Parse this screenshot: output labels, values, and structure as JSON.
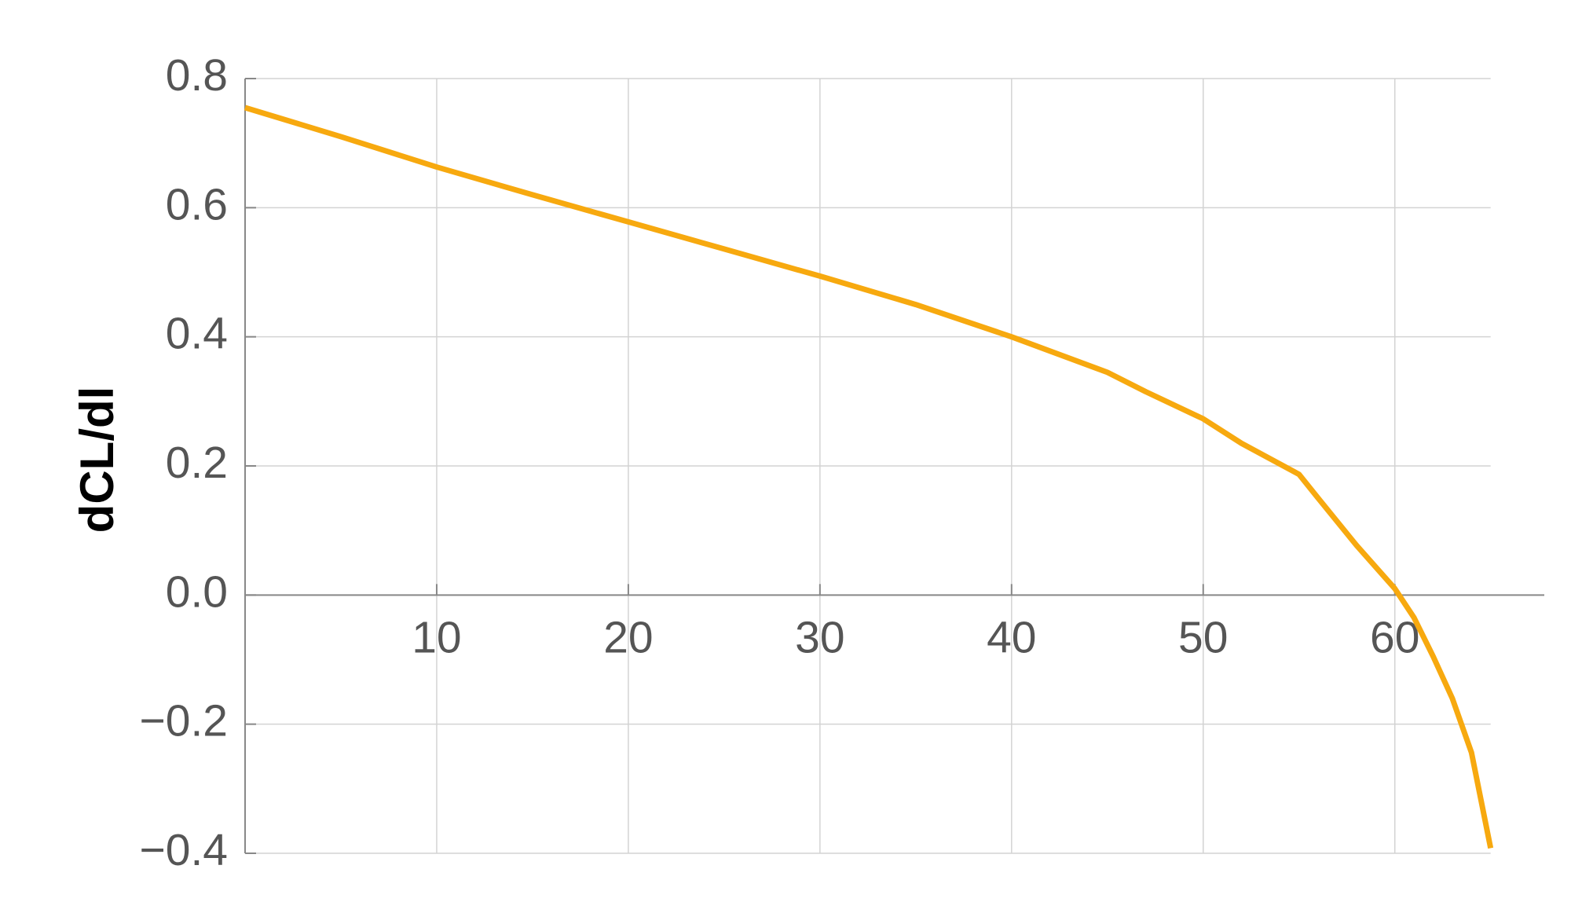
{
  "chart_data": {
    "type": "line",
    "y_label": "dCL/dl",
    "x": [
      0,
      5,
      10,
      15,
      20,
      25,
      30,
      35,
      40,
      45,
      47,
      50,
      52,
      55,
      56,
      58,
      60,
      61,
      62,
      63,
      64,
      65
    ],
    "series": [
      {
        "color": "#f7a90f",
        "values": [
          0.755,
          0.71,
          0.663,
          0.62,
          0.578,
          0.536,
          0.494,
          0.45,
          0.4,
          0.345,
          0.315,
          0.273,
          0.235,
          0.187,
          0.15,
          0.077,
          0.01,
          -0.035,
          -0.095,
          -0.16,
          -0.244,
          -0.392
        ]
      }
    ],
    "xlim": [
      0,
      67.8
    ],
    "ylim": [
      -0.4,
      0.8
    ],
    "xticks": [
      10,
      20,
      30,
      40,
      50,
      60
    ],
    "yticks": [
      {
        "value": -0.4,
        "label": "−0.4"
      },
      {
        "value": -0.2,
        "label": "−0.2"
      },
      {
        "value": 0,
        "label": "0.0"
      },
      0.2,
      0.4,
      0.6,
      0.8
    ],
    "grid": true
  }
}
